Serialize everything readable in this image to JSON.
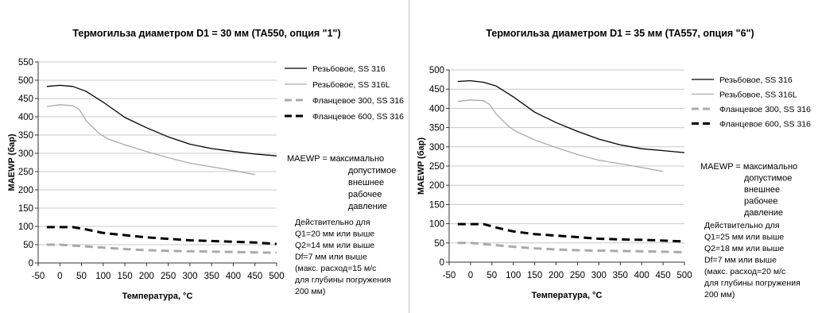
{
  "chart_data": [
    {
      "type": "line",
      "title": "Термогильза диаметром D1 = 30 мм (TA550, опция \"1\")",
      "xlabel": "Температура, °C",
      "ylabel": "MAEWP (бар)",
      "xlim": [
        -50,
        500
      ],
      "ylim": [
        0,
        550
      ],
      "xticks": [
        -50,
        0,
        50,
        100,
        150,
        200,
        250,
        300,
        350,
        400,
        450,
        500
      ],
      "yticks": [
        0,
        50,
        100,
        150,
        200,
        250,
        300,
        350,
        400,
        450,
        500,
        550
      ],
      "grid": "horizontal",
      "legend_position": "right",
      "series": [
        {
          "name": "Резьбовое, SS 316",
          "color": "#000000",
          "dash": "solid",
          "x": [
            -30,
            0,
            30,
            60,
            100,
            150,
            200,
            250,
            300,
            350,
            400,
            450,
            500
          ],
          "y": [
            483,
            486,
            483,
            470,
            440,
            398,
            370,
            345,
            325,
            313,
            305,
            298,
            293
          ]
        },
        {
          "name": "Резьбовое, SS 316L",
          "color": "#aaaaaa",
          "dash": "solid",
          "x": [
            -30,
            0,
            30,
            45,
            60,
            90,
            110,
            150,
            200,
            250,
            300,
            350,
            400,
            450
          ],
          "y": [
            428,
            433,
            430,
            420,
            390,
            355,
            340,
            323,
            305,
            288,
            273,
            263,
            253,
            242
          ]
        },
        {
          "name": "Фланцевое 300, SS 316",
          "color": "#aaaaaa",
          "dash": "dashed",
          "x": [
            -30,
            0,
            50,
            100,
            150,
            200,
            250,
            300,
            350,
            400,
            450,
            500
          ],
          "y": [
            50,
            50,
            46,
            42,
            38,
            35,
            33,
            32,
            31,
            30,
            29,
            28
          ]
        },
        {
          "name": "Фланцевое 600, SS 316",
          "color": "#000000",
          "dash": "dashed",
          "x": [
            -30,
            0,
            30,
            60,
            100,
            150,
            200,
            250,
            300,
            350,
            400,
            450,
            500
          ],
          "y": [
            98,
            98,
            98,
            92,
            82,
            76,
            70,
            66,
            62,
            60,
            58,
            56,
            52
          ]
        }
      ],
      "note_lines": [
        "MAEWP = максимально",
        "допустимое",
        "внешнее",
        "рабочее",
        "давление"
      ],
      "validity_lines": [
        "Действительно для",
        "Q1=20 мм или выше",
        "Q2=14 мм или выше",
        "Df=7 мм или выше",
        "(макс. расход=15 м/с",
        "для глубины погружения",
        "200 мм)"
      ]
    },
    {
      "type": "line",
      "title": "Термогильза диаметром D1 = 35 мм (TA557, опция \"6\")",
      "xlabel": "Температура, °C",
      "ylabel": "MAEWP (бар)",
      "xlim": [
        -50,
        500
      ],
      "ylim": [
        0,
        500
      ],
      "xticks": [
        -50,
        0,
        50,
        100,
        150,
        200,
        250,
        300,
        350,
        400,
        450,
        500
      ],
      "yticks": [
        0,
        50,
        100,
        150,
        200,
        250,
        300,
        350,
        400,
        450,
        500
      ],
      "grid": "horizontal",
      "legend_position": "right",
      "series": [
        {
          "name": "Резьбовое, SS 316",
          "color": "#000000",
          "dash": "solid",
          "x": [
            -30,
            0,
            30,
            60,
            100,
            150,
            200,
            250,
            300,
            350,
            400,
            450,
            500
          ],
          "y": [
            470,
            472,
            468,
            458,
            430,
            390,
            363,
            340,
            320,
            305,
            295,
            290,
            285
          ]
        },
        {
          "name": "Резьбовое, SS 316L",
          "color": "#aaaaaa",
          "dash": "solid",
          "x": [
            -30,
            0,
            30,
            45,
            60,
            90,
            110,
            150,
            200,
            250,
            300,
            350,
            400,
            450
          ],
          "y": [
            418,
            422,
            420,
            410,
            385,
            352,
            338,
            318,
            298,
            280,
            265,
            256,
            246,
            236
          ]
        },
        {
          "name": "Фланцевое 300, SS 316",
          "color": "#aaaaaa",
          "dash": "dashed",
          "x": [
            -30,
            0,
            50,
            100,
            150,
            200,
            250,
            300,
            350,
            400,
            450,
            500
          ],
          "y": [
            50,
            50,
            45,
            40,
            36,
            33,
            31,
            30,
            29,
            28,
            27,
            26
          ]
        },
        {
          "name": "Фланцевое 600, SS 316",
          "color": "#000000",
          "dash": "dashed",
          "x": [
            -30,
            0,
            30,
            60,
            100,
            150,
            200,
            250,
            300,
            350,
            400,
            450,
            500
          ],
          "y": [
            99,
            99,
            99,
            90,
            80,
            73,
            69,
            65,
            61,
            59,
            58,
            56,
            54
          ]
        }
      ],
      "note_lines": [
        "MAEWP = максимально",
        "допустимое",
        "внешнее",
        "рабочее",
        "давление"
      ],
      "validity_lines": [
        "Действительно для",
        "Q1=25 мм или выше",
        "Q2=18 мм или выше",
        "Df=7 мм или выше",
        "(макс. расход=20 м/с",
        "для глубины погружения",
        "200 мм)"
      ]
    }
  ]
}
